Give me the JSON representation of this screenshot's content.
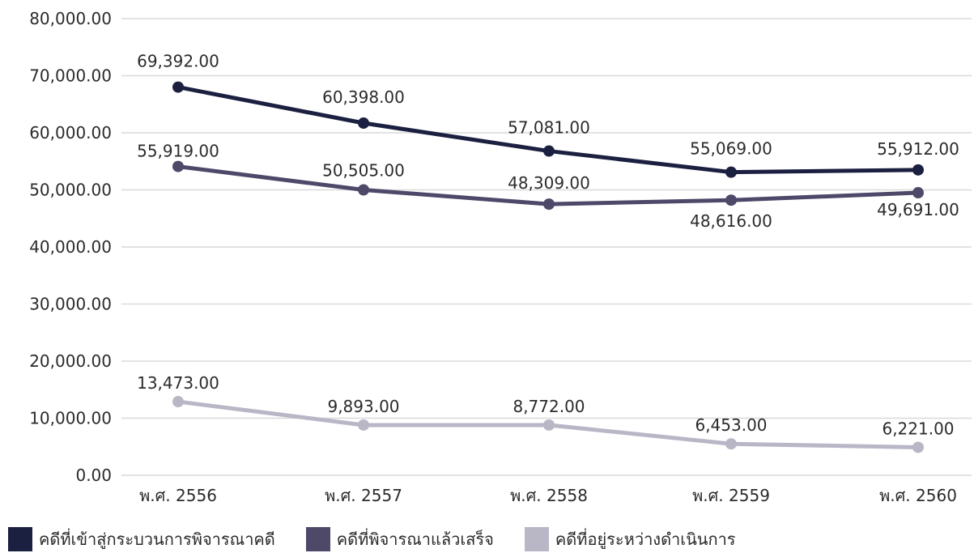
{
  "chart_data": {
    "type": "line",
    "categories": [
      "พ.ศ. 2556",
      "พ.ศ. 2557",
      "พ.ศ. 2558",
      "พ.ศ. 2559",
      "พ.ศ. 2560"
    ],
    "ylim": [
      0,
      80000
    ],
    "yticks": [
      "0.00",
      "10,000.00",
      "20,000.00",
      "30,000.00",
      "40,000.00",
      "50,000.00",
      "60,000.00",
      "70,000.00",
      "80,000.00"
    ],
    "grid": true,
    "legend_position": "bottom-left",
    "series": [
      {
        "name": "คดีที่เข้าสู่กระบวนการพิจารณาคดี",
        "color": "#1c2040",
        "values": [
          69392,
          60398,
          57081,
          55069,
          55912
        ],
        "display_values": [
          68000,
          61700,
          56800,
          53100,
          53500
        ],
        "labels": [
          "69,392.00",
          "60,398.00",
          "57,081.00",
          "55,069.00",
          "55,912.00"
        ]
      },
      {
        "name": "คดีที่พิจารณาแล้วเสร็จ",
        "color": "#4e4869",
        "values": [
          55919,
          50505,
          48309,
          48616,
          49691
        ],
        "display_values": [
          54100,
          50000,
          47500,
          48200,
          49500
        ],
        "labels": [
          "55,919.00",
          "50,505.00",
          "48,309.00",
          "48,616.00",
          "49,691.00"
        ]
      },
      {
        "name": "คดีที่อยู่ระหว่างดำเนินการ",
        "color": "#b9b6c6",
        "values": [
          13473,
          9893,
          8772,
          6453,
          6221
        ],
        "display_values": [
          12900,
          8800,
          8800,
          5500,
          4900
        ],
        "labels": [
          "13,473.00",
          "9,893.00",
          "8,772.00",
          "6,453.00",
          "6,221.00"
        ]
      }
    ]
  }
}
